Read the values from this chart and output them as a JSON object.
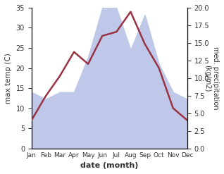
{
  "months": [
    "Jan",
    "Feb",
    "Mar",
    "Apr",
    "May",
    "Jun",
    "Jul",
    "Aug",
    "Sep",
    "Oct",
    "Nov",
    "Dec"
  ],
  "temperature": [
    7,
    13,
    18,
    24,
    21,
    28,
    29,
    34,
    26,
    20,
    10,
    7
  ],
  "precipitation": [
    8,
    7,
    8,
    8,
    13,
    20,
    20,
    14,
    19,
    12,
    8,
    7
  ],
  "temp_color": "#993344",
  "precip_fill_color": "#bfc8e8",
  "ylabel_left": "max temp (C)",
  "ylabel_right": "med. precipitation\n(kg/m2)",
  "xlabel": "date (month)",
  "ylim_left": [
    0,
    35
  ],
  "ylim_right": [
    0,
    20
  ],
  "background_color": "#ffffff"
}
